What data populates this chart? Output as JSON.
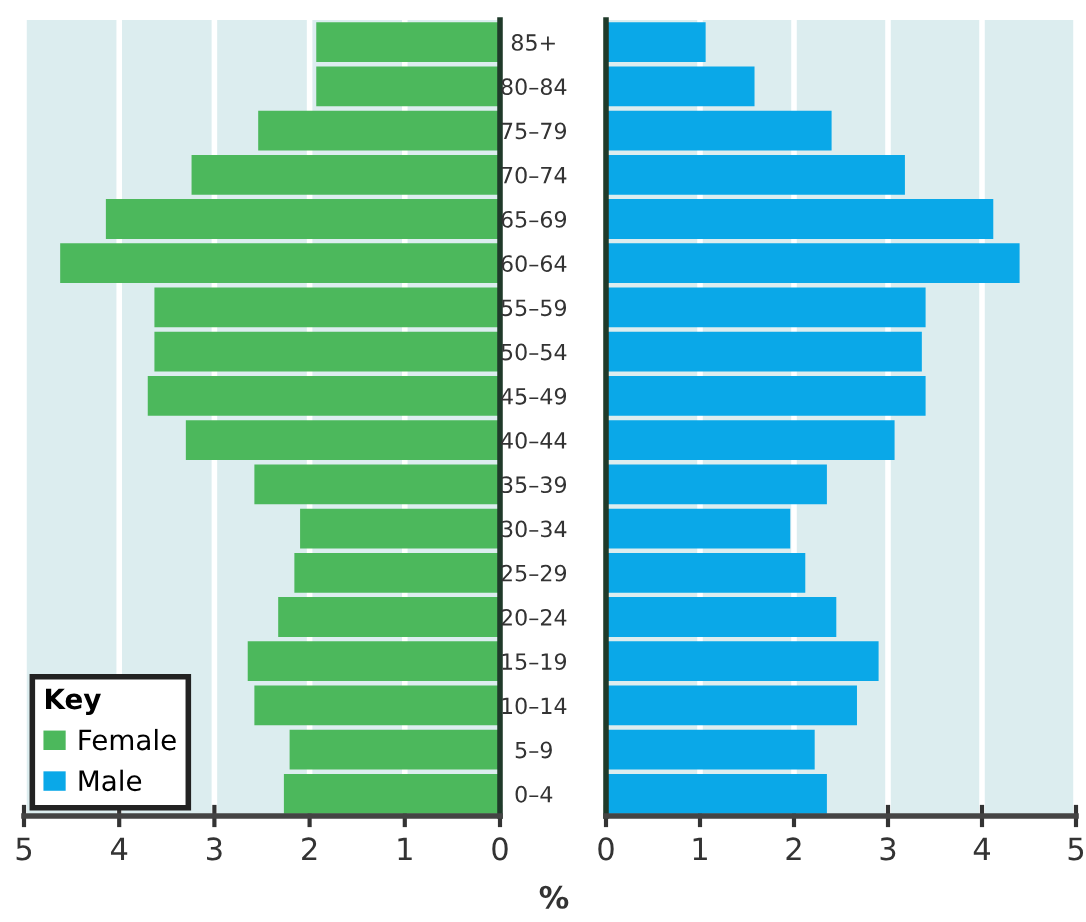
{
  "chart_data": [
    {
      "type": "bar",
      "orientation": "horizontal",
      "categories": [
        null,
        null,
        null,
        null,
        null,
        null,
        null,
        null,
        null,
        null,
        null,
        null,
        null,
        null,
        null,
        null,
        null,
        null
      ],
      "series": [
        {
          "name": "Female",
          "color": "#4cb85c",
          "values": [
            1.93,
            1.93,
            2.54,
            3.24,
            4.14,
            4.62,
            3.63,
            3.63,
            3.7,
            3.3,
            2.58,
            2.1,
            2.16,
            2.33,
            2.65,
            2.58,
            2.21,
            2.27
          ]
        }
      ],
      "xlim": [
        5,
        0
      ],
      "xticks": [
        5,
        4,
        3,
        2,
        1,
        0
      ],
      "tick_labels": "x",
      "grid": "x",
      "legend": "bottom left",
      "legend_title": "Key"
    },
    {
      "type": "bar",
      "orientation": "horizontal",
      "categories": [
        "85+",
        "80–84",
        "75–79",
        "70–74",
        "65–69",
        "60–64",
        "55–59",
        "50–54",
        "45–49",
        "40–44",
        "35–39",
        "30–34",
        "25–29",
        "20–24",
        "15–19",
        "10–14",
        "5–9",
        "0–4"
      ],
      "series": [
        {
          "name": "Male",
          "color": "#0aa8e8",
          "values": [
            1.06,
            1.58,
            2.4,
            3.18,
            4.12,
            4.4,
            3.4,
            3.36,
            3.4,
            3.07,
            2.35,
            1.96,
            2.12,
            2.45,
            2.9,
            2.67,
            2.22,
            2.35
          ]
        }
      ],
      "xlim": [
        0,
        5
      ],
      "xticks": [
        0,
        1,
        2,
        3,
        4,
        5
      ],
      "grid": "x",
      "xlabel": "%"
    }
  ]
}
